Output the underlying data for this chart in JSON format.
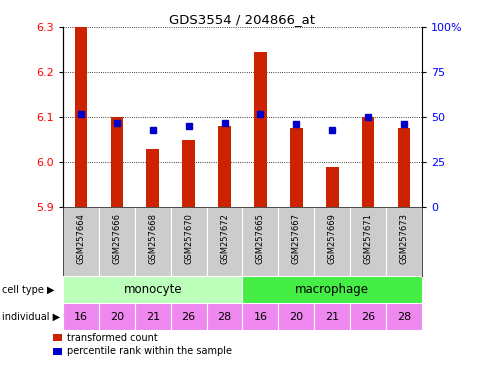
{
  "title": "GDS3554 / 204866_at",
  "samples": [
    "GSM257664",
    "GSM257666",
    "GSM257668",
    "GSM257670",
    "GSM257672",
    "GSM257665",
    "GSM257667",
    "GSM257669",
    "GSM257671",
    "GSM257673"
  ],
  "transformed_count": [
    6.3,
    6.1,
    6.03,
    6.05,
    6.08,
    6.245,
    6.075,
    5.99,
    6.1,
    6.075
  ],
  "percentile_rank": [
    52,
    47,
    43,
    45,
    47,
    52,
    46,
    43,
    50,
    46
  ],
  "ylim": [
    5.9,
    6.3
  ],
  "yticks": [
    5.9,
    6.0,
    6.1,
    6.2,
    6.3
  ],
  "right_yticks": [
    0,
    25,
    50,
    75,
    100
  ],
  "right_ylabels": [
    "0",
    "25",
    "50",
    "75",
    "100%"
  ],
  "bar_color": "#cc2200",
  "dot_color": "#0000cc",
  "cell_type_groups": [
    {
      "label": "monocyte",
      "start": 0,
      "end": 5,
      "color": "#bbffbb"
    },
    {
      "label": "macrophage",
      "start": 5,
      "end": 10,
      "color": "#44ee44"
    }
  ],
  "individuals": [
    16,
    20,
    21,
    26,
    28,
    16,
    20,
    21,
    26,
    28
  ],
  "individual_color": "#ee88ee",
  "sample_bg_color": "#cccccc",
  "legend_items": [
    {
      "color": "#cc2200",
      "label": "transformed count"
    },
    {
      "color": "#0000cc",
      "label": "percentile rank within the sample"
    }
  ]
}
